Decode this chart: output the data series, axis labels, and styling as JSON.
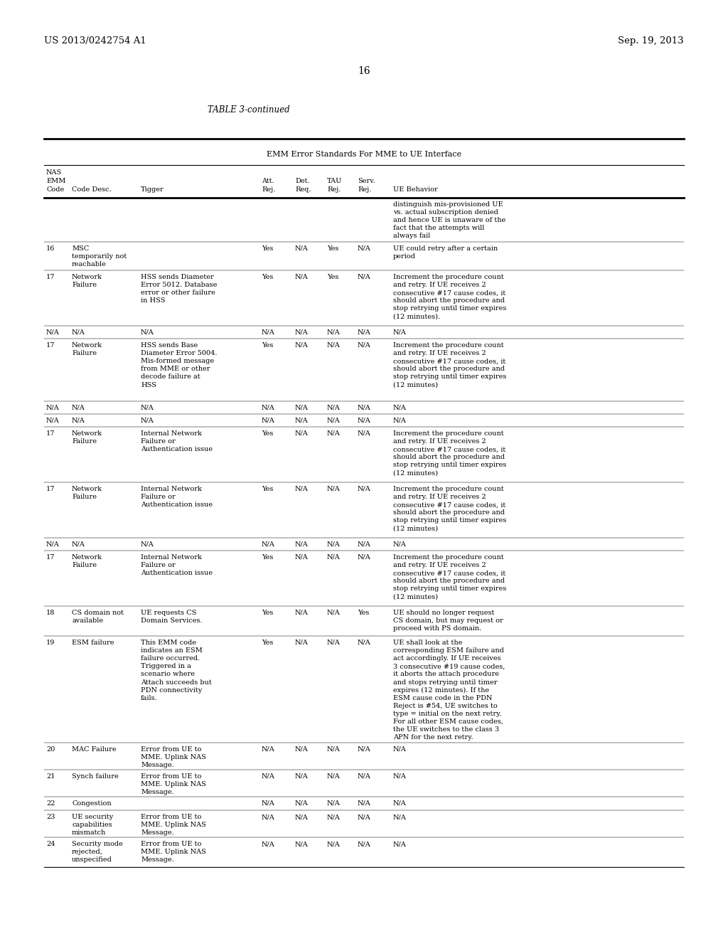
{
  "page_number": "16",
  "left_header": "US 2013/0242754 A1",
  "right_header": "Sep. 19, 2013",
  "table_title": "TABLE 3-continued",
  "table_subtitle": "EMM Error Standards For MME to UE Interface",
  "bg_color": "#ffffff",
  "text_color": "#000000",
  "font_size": 7.0,
  "rows": [
    [
      "",
      "",
      "",
      "",
      "",
      "",
      "",
      "distinguish mis-provisioned UE\nvs. actual subscription denied\nand hence UE is unaware of the\nfact that the attempts will\nalways fail",
      0.62
    ],
    [
      "16",
      "MSC\ntemporarily not\nreachable",
      "",
      "Yes",
      "N/A",
      "Yes",
      "N/A",
      "UE could retry after a certain\nperiod",
      0.4
    ],
    [
      "17",
      "Network\nFailure",
      "HSS sends Diameter\nError 5012. Database\nerror or other failure\nin HSS",
      "Yes",
      "N/A",
      "Yes",
      "N/A",
      "Increment the procedure count\nand retry. If UE receives 2\nconsecutive #17 cause codes, it\nshould abort the procedure and\nstop retrying until timer expires\n(12 minutes).",
      0.78
    ],
    [
      "N/A",
      "N/A",
      "N/A",
      "N/A",
      "N/A",
      "N/A",
      "N/A",
      "N/A",
      0.18
    ],
    [
      "17",
      "Network\nFailure",
      "HSS sends Base\nDiameter Error 5004.\nMis-formed message\nfrom MME or other\ndecode failure at\nHSS",
      "Yes",
      "N/A",
      "N/A",
      "N/A",
      "Increment the procedure count\nand retry. If UE receives 2\nconsecutive #17 cause codes, it\nshould abort the procedure and\nstop retrying until timer expires\n(12 minutes)",
      0.88
    ],
    [
      "N/A",
      "N/A",
      "N/A",
      "N/A",
      "N/A",
      "N/A",
      "N/A",
      "N/A",
      0.18
    ],
    [
      "N/A",
      "N/A",
      "N/A",
      "N/A",
      "N/A",
      "N/A",
      "N/A",
      "N/A",
      0.18
    ],
    [
      "17",
      "Network\nFailure",
      "Internal Network\nFailure or\nAuthentication issue",
      "Yes",
      "N/A",
      "N/A",
      "N/A",
      "Increment the procedure count\nand retry. If UE receives 2\nconsecutive #17 cause codes, it\nshould abort the procedure and\nstop retrying until timer expires\n(12 minutes)",
      0.78
    ],
    [
      "17",
      "Network\nFailure",
      "Internal Network\nFailure or\nAuthentication issue",
      "Yes",
      "N/A",
      "N/A",
      "N/A",
      "Increment the procedure count\nand retry. If UE receives 2\nconsecutive #17 cause codes, it\nshould abort the procedure and\nstop retrying until timer expires\n(12 minutes)",
      0.78
    ],
    [
      "N/A",
      "N/A",
      "N/A",
      "N/A",
      "N/A",
      "N/A",
      "N/A",
      "N/A",
      0.18
    ],
    [
      "17",
      "Network\nFailure",
      "Internal Network\nFailure or\nAuthentication issue",
      "Yes",
      "N/A",
      "N/A",
      "N/A",
      "Increment the procedure count\nand retry. If UE receives 2\nconsecutive #17 cause codes, it\nshould abort the procedure and\nstop retrying until timer expires\n(12 minutes)",
      0.78
    ],
    [
      "18",
      "CS domain not\navailable",
      "UE requests CS\nDomain Services.",
      "Yes",
      "N/A",
      "N/A",
      "Yes",
      "UE should no longer request\nCS domain, but may request or\nproceed with PS domain.",
      0.42
    ],
    [
      "19",
      "ESM failure",
      "This EMM code\nindicates an ESM\nfailure occurred.\nTriggered in a\nscenario where\nAttach succeeds but\nPDN connectivity\nfails.",
      "Yes",
      "N/A",
      "N/A",
      "N/A",
      "UE shall look at the\ncorresponding ESM failure and\nact accordingly. If UE receives\n3 consecutive #19 cause codes,\nit aborts the attach procedure\nand stops retrying until timer\nexpires (12 minutes). If the\nESM cause code in the PDN\nReject is #54, UE switches to\ntype = initial on the next retry.\nFor all other ESM cause codes,\nthe UE switches to the class 3\nAPN for the next retry.",
      1.5
    ],
    [
      "20",
      "MAC Failure",
      "Error from UE to\nMME. Uplink NAS\nMessage.",
      "N/A",
      "N/A",
      "N/A",
      "N/A",
      "N/A",
      0.38
    ],
    [
      "21",
      "Synch failure",
      "Error from UE to\nMME. Uplink NAS\nMessage.",
      "N/A",
      "N/A",
      "N/A",
      "N/A",
      "N/A",
      0.38
    ],
    [
      "22",
      "Congestion",
      "",
      "N/A",
      "N/A",
      "N/A",
      "N/A",
      "N/A",
      0.19
    ],
    [
      "23",
      "UE security\ncapabilities\nmismatch",
      "Error from UE to\nMME. Uplink NAS\nMessage.",
      "N/A",
      "N/A",
      "N/A",
      "N/A",
      "N/A",
      0.38
    ],
    [
      "24",
      "Security mode\nrejected,\nunspecified",
      "Error from UE to\nMME. Uplink NAS\nMessage.",
      "N/A",
      "N/A",
      "N/A",
      "N/A",
      "N/A",
      0.42
    ]
  ]
}
